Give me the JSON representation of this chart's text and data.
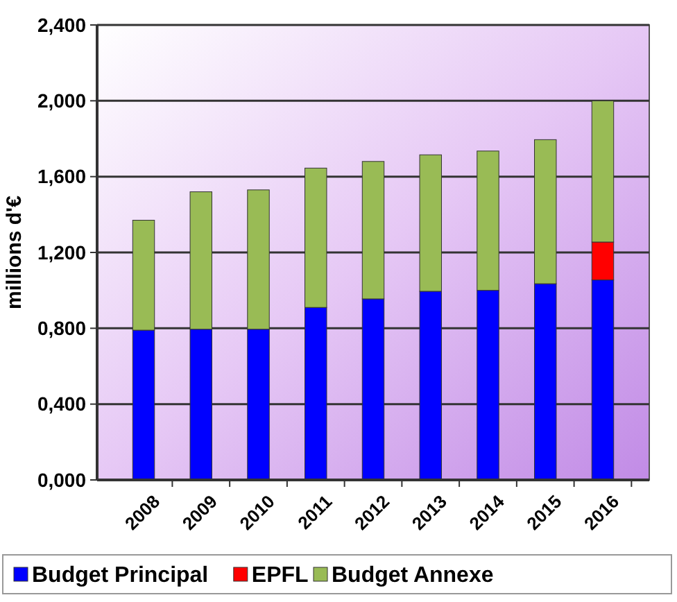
{
  "chart_data": {
    "type": "bar",
    "stacked": true,
    "ylabel": "millions d'€",
    "categories": [
      "2008",
      "2009",
      "2010",
      "2011",
      "2012",
      "2013",
      "2014",
      "2015",
      "2016"
    ],
    "series": [
      {
        "name": "Budget Principal",
        "color": "#0000ff",
        "values": [
          0.79,
          0.795,
          0.795,
          0.91,
          0.955,
          0.995,
          1.0,
          1.035,
          1.055
        ]
      },
      {
        "name": "EPFL",
        "color": "#ff0000",
        "values": [
          null,
          null,
          null,
          null,
          null,
          null,
          null,
          null,
          0.2
        ]
      },
      {
        "name": "Budget Annexe",
        "color": "#99bb55",
        "values": [
          0.58,
          0.725,
          0.735,
          0.735,
          0.725,
          0.72,
          0.735,
          0.76,
          0.745
        ]
      }
    ],
    "ylim": [
      0,
      2.4
    ],
    "yticks": [
      {
        "value": 0,
        "label": "0,000"
      },
      {
        "value": 0.4,
        "label": "0,400"
      },
      {
        "value": 0.8,
        "label": "0,800"
      },
      {
        "value": 1.2,
        "label": "1,200"
      },
      {
        "value": 1.6,
        "label": "1,600"
      },
      {
        "value": 2.0,
        "label": "2,000"
      },
      {
        "value": 2.4,
        "label": "2,400"
      }
    ],
    "grid": "y",
    "legend": "bottom"
  }
}
